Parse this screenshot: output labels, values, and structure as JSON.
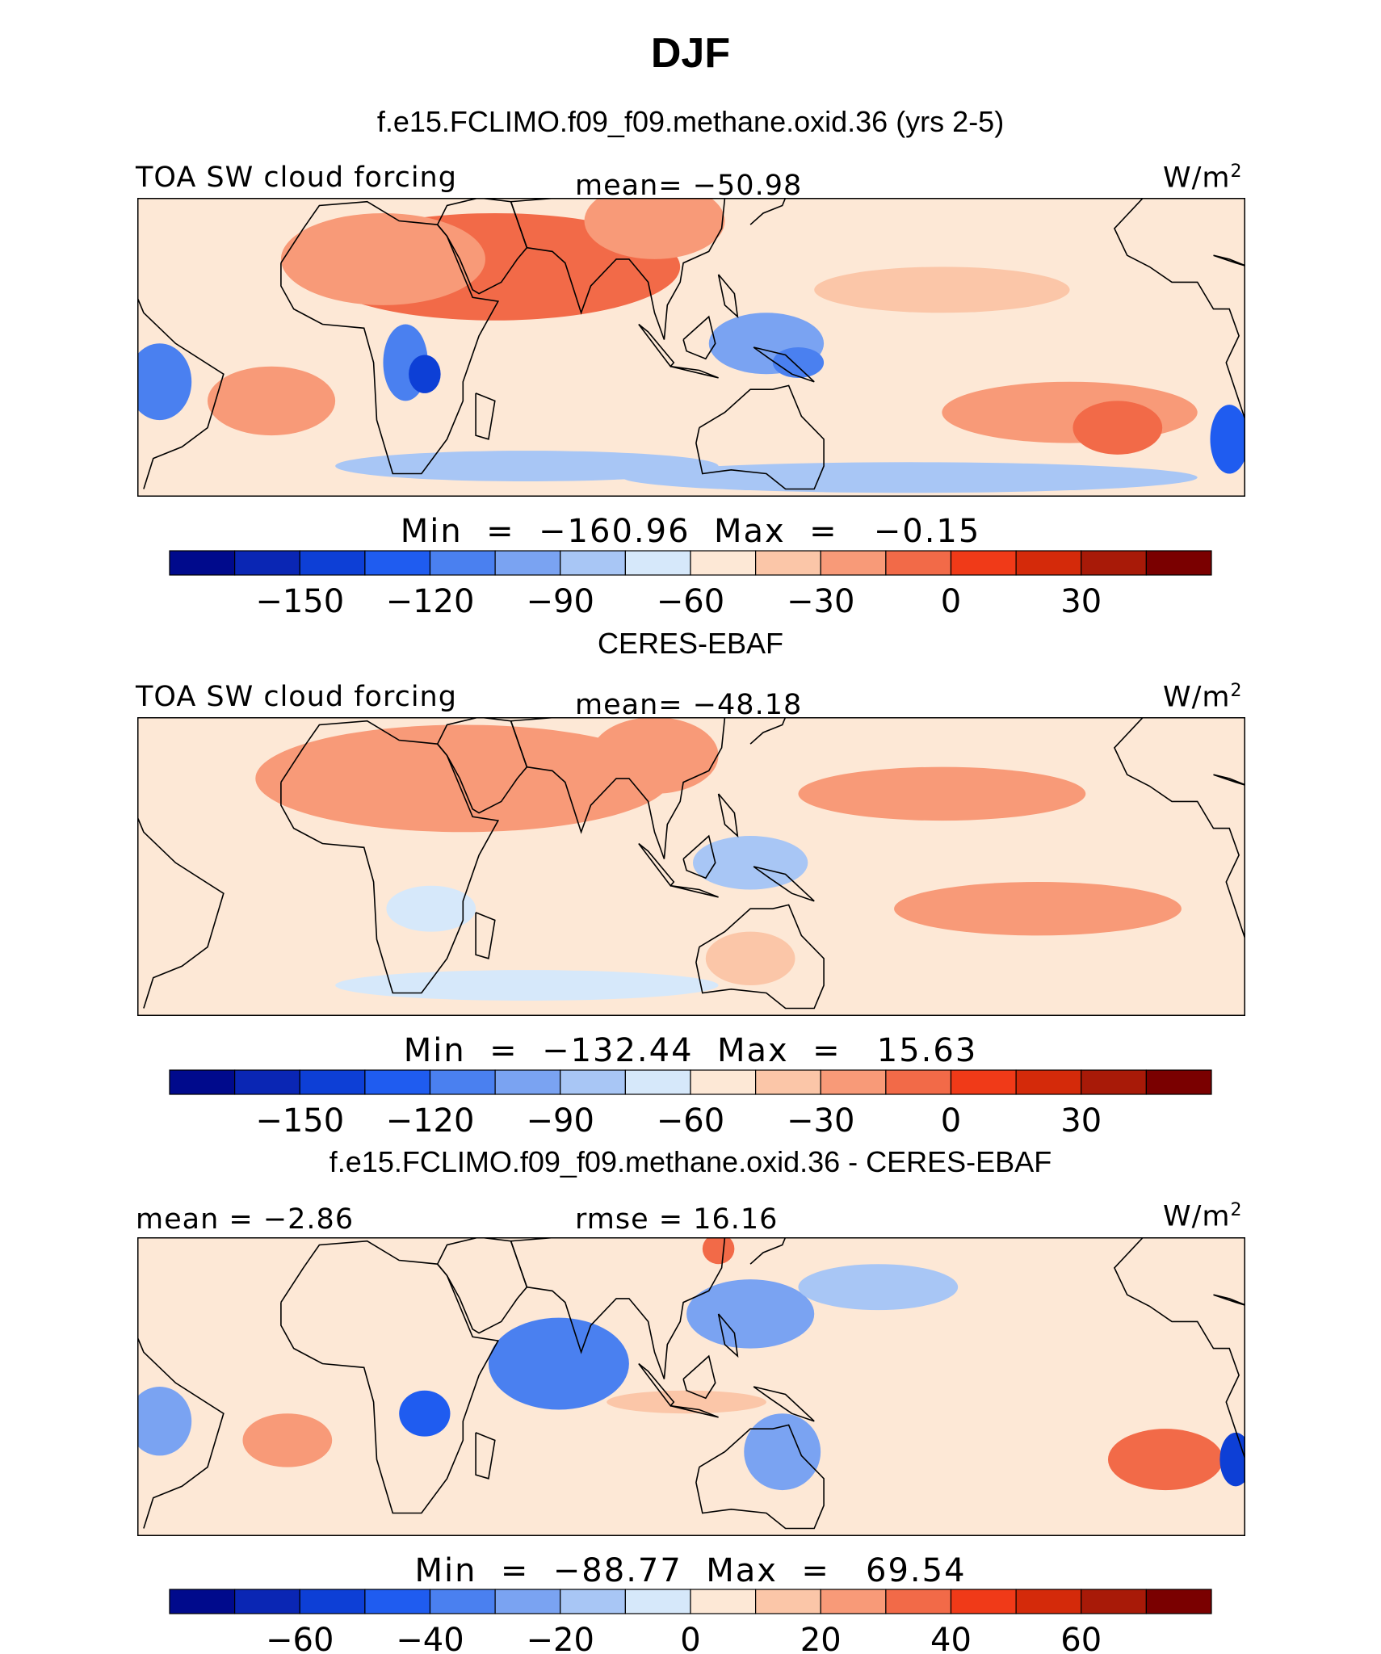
{
  "title": "DJF",
  "panels": [
    {
      "case_title": "f.e15.FCLIMO.f09_f09.methane.oxid.36 (yrs 2-5)",
      "left_label": "TOA SW cloud forcing",
      "center_label": "mean= −50.98",
      "units_base": "W/m",
      "units_exp": "2",
      "minmax": "Min  =  −160.96  Max  =   −0.15"
    },
    {
      "case_title": "CERES-EBAF",
      "left_label": "TOA SW cloud forcing",
      "center_label": "mean= −48.18",
      "units_base": "W/m",
      "units_exp": "2",
      "minmax": "Min  =  −132.44  Max  =   15.63"
    },
    {
      "case_title": "f.e15.FCLIMO.f09_f09.methane.oxid.36 - CERES-EBAF",
      "left_label": "mean =  −2.86",
      "center_label": "rmse =  16.16",
      "units_base": "W/m",
      "units_exp": "2",
      "minmax": "Min  =  −88.77  Max  =   69.54"
    }
  ],
  "colors": {
    "palette": [
      "#000a8c",
      "#0a26b4",
      "#0d3fd6",
      "#1f5cf0",
      "#4a80f0",
      "#7aa3f2",
      "#a8c6f5",
      "#d6e8fa",
      "#fde8d6",
      "#fbc6a8",
      "#f89a78",
      "#f26a48",
      "#f03a18",
      "#d42a0a",
      "#a81a08",
      "#7a0000"
    ],
    "land_outline": "#000000"
  },
  "chart_data": [
    {
      "type": "heatmap",
      "title": "TOA SW cloud forcing",
      "units": "W/m2",
      "mean": -50.98,
      "min": -160.96,
      "max": -0.15,
      "colorbar_levels": [
        -165,
        -150,
        -135,
        -120,
        -105,
        -90,
        -75,
        -60,
        -45,
        -30,
        -15,
        0,
        15,
        30,
        45
      ],
      "colorbar_tick_labels": [
        "−150",
        "−120",
        "−90",
        "−60",
        "−30",
        "0",
        "30"
      ],
      "colorbar_tick_values": [
        -150,
        -120,
        -90,
        -60,
        -30,
        0,
        30
      ],
      "colorbar_range": [
        -180,
        60
      ],
      "map_features": [
        {
          "lon": 50,
          "lat": 20,
          "rx": 58,
          "ry": 14,
          "value": -15
        },
        {
          "lon": 15,
          "lat": 22,
          "rx": 32,
          "ry": 12,
          "value": -18
        },
        {
          "lon": 100,
          "lat": 32,
          "rx": 22,
          "ry": 10,
          "value": -20
        },
        {
          "lon": 190,
          "lat": 14,
          "rx": 40,
          "ry": 6,
          "value": -32
        },
        {
          "lon": 230,
          "lat": -18,
          "rx": 40,
          "ry": 8,
          "value": -28
        },
        {
          "lon": 245,
          "lat": -22,
          "rx": 14,
          "ry": 7,
          "value": -15
        },
        {
          "lon": -20,
          "lat": -15,
          "rx": 20,
          "ry": 9,
          "value": -28
        },
        {
          "lon": 22,
          "lat": -5,
          "rx": 7,
          "ry": 10,
          "value": -115
        },
        {
          "lon": 28,
          "lat": -8,
          "rx": 5,
          "ry": 5,
          "value": -140
        },
        {
          "lon": -55,
          "lat": -10,
          "rx": 10,
          "ry": 10,
          "value": -110
        },
        {
          "lon": 135,
          "lat": 0,
          "rx": 18,
          "ry": 8,
          "value": -95
        },
        {
          "lon": 145,
          "lat": -5,
          "rx": 8,
          "ry": 4,
          "value": -120
        },
        {
          "lon": 280,
          "lat": -25,
          "rx": 6,
          "ry": 9,
          "value": -125
        },
        {
          "lon": 60,
          "lat": -32,
          "rx": 60,
          "ry": 4,
          "value": -85
        },
        {
          "lon": 180,
          "lat": -35,
          "rx": 90,
          "ry": 4,
          "value": -80
        }
      ]
    },
    {
      "type": "heatmap",
      "title": "TOA SW cloud forcing",
      "units": "W/m2",
      "mean": -48.18,
      "min": -132.44,
      "max": 15.63,
      "colorbar_levels": [
        -165,
        -150,
        -135,
        -120,
        -105,
        -90,
        -75,
        -60,
        -45,
        -30,
        -15,
        0,
        15,
        30,
        45
      ],
      "colorbar_tick_labels": [
        "−150",
        "−120",
        "−90",
        "−60",
        "−30",
        "0",
        "30"
      ],
      "colorbar_tick_values": [
        -150,
        -120,
        -90,
        -60,
        -30,
        0,
        30
      ],
      "colorbar_range": [
        -180,
        60
      ],
      "map_features": [
        {
          "lon": 40,
          "lat": 22,
          "rx": 65,
          "ry": 14,
          "value": -18
        },
        {
          "lon": 100,
          "lat": 28,
          "rx": 20,
          "ry": 10,
          "value": -22
        },
        {
          "lon": 190,
          "lat": 18,
          "rx": 45,
          "ry": 7,
          "value": -30
        },
        {
          "lon": 220,
          "lat": -12,
          "rx": 45,
          "ry": 7,
          "value": -30
        },
        {
          "lon": 30,
          "lat": -12,
          "rx": 14,
          "ry": 6,
          "value": -70
        },
        {
          "lon": 130,
          "lat": 0,
          "rx": 18,
          "ry": 7,
          "value": -85
        },
        {
          "lon": 130,
          "lat": -25,
          "rx": 14,
          "ry": 7,
          "value": -35
        },
        {
          "lon": 60,
          "lat": -32,
          "rx": 60,
          "ry": 4,
          "value": -75
        }
      ]
    },
    {
      "type": "heatmap",
      "title": "f.e15.FCLIMO.f09_f09.methane.oxid.36 - CERES-EBAF",
      "units": "W/m2",
      "mean": -2.86,
      "rmse": 16.16,
      "min": -88.77,
      "max": 69.54,
      "colorbar_levels": [
        -70,
        -60,
        -50,
        -40,
        -30,
        -20,
        -10,
        0,
        10,
        20,
        30,
        40,
        50,
        60,
        70
      ],
      "colorbar_tick_labels": [
        "−60",
        "−40",
        "−20",
        "0",
        "20",
        "40",
        "60"
      ],
      "colorbar_tick_values": [
        -60,
        -40,
        -20,
        0,
        20,
        40,
        60
      ],
      "colorbar_range": [
        -80,
        80
      ],
      "map_features": [
        {
          "lon": 70,
          "lat": 5,
          "rx": 22,
          "ry": 12,
          "value": -35
        },
        {
          "lon": 130,
          "lat": 18,
          "rx": 20,
          "ry": 9,
          "value": -30
        },
        {
          "lon": 170,
          "lat": 25,
          "rx": 25,
          "ry": 6,
          "value": -20
        },
        {
          "lon": 28,
          "lat": -8,
          "rx": 8,
          "ry": 6,
          "value": -45
        },
        {
          "lon": 140,
          "lat": -18,
          "rx": 12,
          "ry": 10,
          "value": -30
        },
        {
          "lon": 260,
          "lat": -20,
          "rx": 18,
          "ry": 8,
          "value": 35
        },
        {
          "lon": 282,
          "lat": -20,
          "rx": 5,
          "ry": 7,
          "value": -60
        },
        {
          "lon": -15,
          "lat": -15,
          "rx": 14,
          "ry": 7,
          "value": 22
        },
        {
          "lon": -55,
          "lat": -10,
          "rx": 10,
          "ry": 9,
          "value": -30
        },
        {
          "lon": 120,
          "lat": 35,
          "rx": 5,
          "ry": 4,
          "value": 32
        },
        {
          "lon": 110,
          "lat": -5,
          "rx": 25,
          "ry": 3,
          "value": 18
        }
      ]
    }
  ]
}
